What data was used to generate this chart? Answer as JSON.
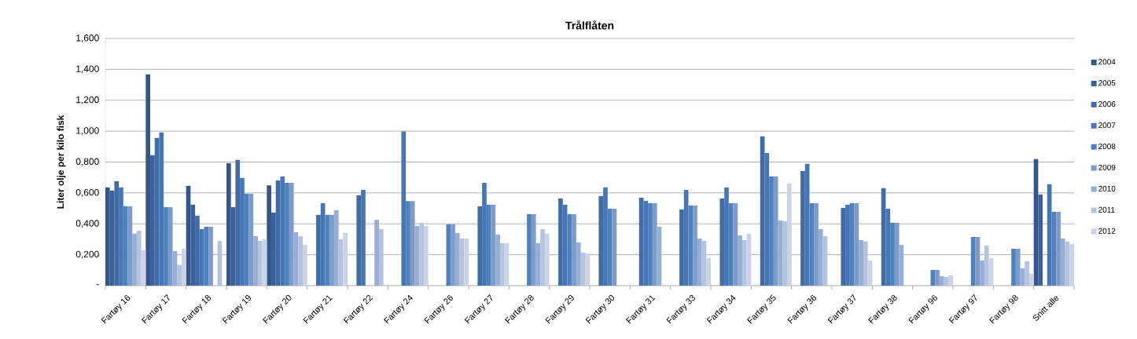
{
  "chart_data": {
    "type": "bar",
    "title": "Trålflåten",
    "ylabel": "Liter olje per kilo fisk",
    "categories": [
      "Fartøy 16",
      "Fartøy 17",
      "Fartøy 18",
      "Fartøy 19",
      "Fartøy 20",
      "Fartøy 21",
      "Fartøy 22",
      "Fartøy 24",
      "Fartøy 26",
      "Fartøy 27",
      "Fartøy 28",
      "Fartøy 29",
      "Fartøy 30",
      "Fartøy 31",
      "Fartøy 33",
      "Fartøy 34",
      "Fartøy 35",
      "Fartøy 36",
      "Fartøy 37",
      "Fartøy 38",
      "Fartøy 96",
      "Fartøy 97",
      "Fartøy 98",
      "Snitt alle"
    ],
    "series": [
      {
        "name": "2004",
        "color": "#34568a",
        "values": [
          0.636,
          1.368,
          0.646,
          0.792,
          0.649,
          null,
          null,
          null,
          null,
          null,
          null,
          null,
          null,
          null,
          null,
          null,
          null,
          null,
          null,
          null,
          null,
          null,
          null,
          0.819
        ]
      },
      {
        "name": "2005",
        "color": "#3a619a",
        "values": [
          0.615,
          0.844,
          0.524,
          0.508,
          0.473,
          null,
          null,
          null,
          null,
          null,
          null,
          null,
          null,
          null,
          null,
          null,
          null,
          null,
          null,
          null,
          null,
          null,
          null,
          0.59
        ]
      },
      {
        "name": "2006",
        "color": "#416ca6",
        "values": [
          0.676,
          0.956,
          0.453,
          0.814,
          0.681,
          0.458,
          0.585,
          null,
          null,
          0.514,
          null,
          0.564,
          0.58,
          0.569,
          0.493,
          0.564,
          0.966,
          0.742,
          0.503,
          0.631,
          null,
          null,
          null,
          null
        ]
      },
      {
        "name": "2007",
        "color": "#4677b4",
        "values": [
          0.636,
          0.992,
          0.366,
          0.697,
          0.707,
          0.534,
          0.62,
          0.998,
          null,
          0.666,
          null,
          0.524,
          0.636,
          0.549,
          0.62,
          0.636,
          0.859,
          0.788,
          0.524,
          0.498,
          null,
          null,
          null,
          0.656
        ]
      },
      {
        "name": "2008",
        "color": "#4f81bd",
        "values": [
          0.514,
          0.508,
          0.381,
          0.595,
          0.666,
          0.458,
          null,
          0.547,
          0.397,
          0.524,
          0.463,
          0.463,
          0.498,
          0.534,
          0.519,
          0.534,
          0.707,
          0.534,
          0.534,
          0.407,
          0.102,
          0.315,
          0.239,
          0.478
        ]
      },
      {
        "name": "2009",
        "color": "#7d9bc9",
        "values": [
          0.514,
          0.508,
          0.381,
          0.595,
          0.666,
          0.458,
          null,
          0.547,
          0.397,
          0.524,
          0.463,
          0.463,
          0.498,
          0.534,
          0.519,
          0.534,
          0.707,
          0.534,
          0.534,
          0.407,
          0.102,
          0.315,
          0.239,
          0.478
        ]
      },
      {
        "name": "2010",
        "color": "#95aed4",
        "values": [
          0.337,
          0.224,
          null,
          0.32,
          0.346,
          0.488,
          0.427,
          0.386,
          0.341,
          0.331,
          0.275,
          0.28,
          null,
          0.381,
          0.305,
          0.325,
          0.422,
          0.366,
          0.295,
          0.264,
          0.061,
          0.163,
          0.112,
          0.305
        ]
      },
      {
        "name": "2011",
        "color": "#b4c3de",
        "values": [
          0.356,
          0.134,
          0.29,
          0.29,
          0.32,
          0.3,
          0.366,
          0.407,
          0.305,
          0.275,
          0.366,
          0.214,
          null,
          null,
          0.29,
          0.295,
          0.417,
          0.32,
          0.285,
          null,
          0.056,
          0.259,
          0.158,
          0.285
        ]
      },
      {
        "name": "2012",
        "color": "#cbd4e6",
        "values": [
          0.229,
          0.239,
          null,
          0.3,
          0.264,
          0.341,
          null,
          0.386,
          0.305,
          0.275,
          0.336,
          0.208,
          null,
          null,
          0.178,
          0.336,
          0.661,
          null,
          0.163,
          null,
          0.066,
          0.178,
          0.076,
          0.269
        ]
      }
    ],
    "ylim": [
      0,
      1.6
    ],
    "yticks": [
      {
        "value": 0,
        "label": "-"
      },
      {
        "value": 0.2,
        "label": "0,200"
      },
      {
        "value": 0.4,
        "label": "0,400"
      },
      {
        "value": 0.6,
        "label": "0,600"
      },
      {
        "value": 0.8,
        "label": "0,800"
      },
      {
        "value": 1.0,
        "label": "1,000"
      },
      {
        "value": 1.2,
        "label": "1,200"
      },
      {
        "value": 1.4,
        "label": "1,400"
      },
      {
        "value": 1.6,
        "label": "1,600"
      }
    ],
    "grid": "y",
    "legend": "right"
  }
}
